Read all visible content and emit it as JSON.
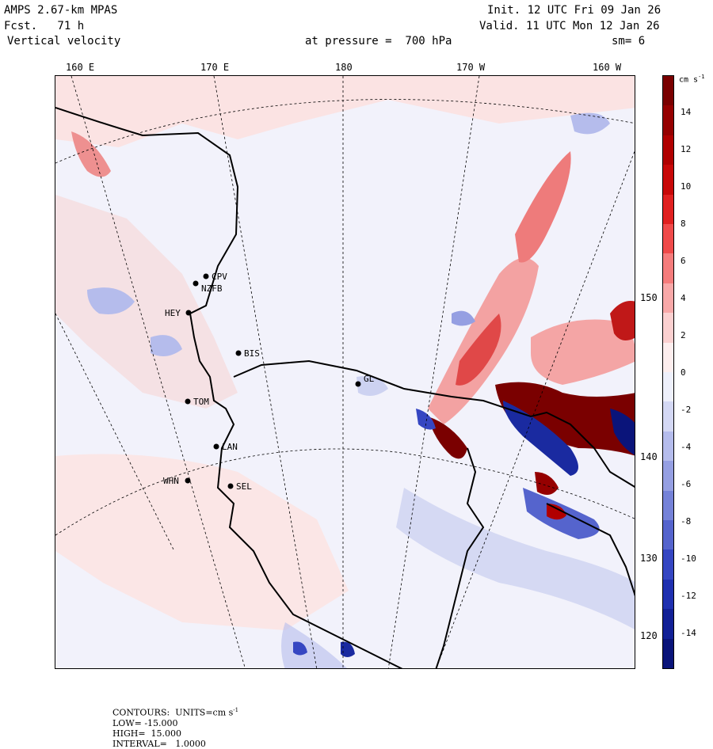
{
  "header": {
    "model": "AMPS 2.67-km MPAS",
    "fcst": "Fcst.   71 h",
    "field": "Vertical velocity",
    "level": "at pressure =  700 hPa",
    "init": "Init. 12 UTC Fri 09 Jan 26",
    "valid": "Valid. 11 UTC Mon 12 Jan 26",
    "smooth": "sm= 6"
  },
  "lon_labels": [
    "160 E",
    "170 E",
    "180",
    "170 W",
    "160 W"
  ],
  "lat_labels": [
    "150 W",
    "140 W",
    "130 W",
    "120 W"
  ],
  "stations": [
    "CPV",
    "NZFB",
    "HEY",
    "BIS",
    "TOM",
    "LAN",
    "WHN",
    "SEL",
    "GL"
  ],
  "colorbar": {
    "units": "cm s",
    "units_exp": "-1",
    "labels": [
      "14",
      "12",
      "10",
      "8",
      "6",
      "4",
      "2",
      "0",
      "-2",
      "-4",
      "-6",
      "-8",
      "-10",
      "-12",
      "-14"
    ],
    "colors": [
      "#7a0000",
      "#950000",
      "#b00000",
      "#c80808",
      "#e02020",
      "#ef4a4a",
      "#f57c7c",
      "#f8a8a8",
      "#fbd0d0",
      "#fdeeee",
      "#eef0fb",
      "#d4d8f4",
      "#b5bcec",
      "#959fe2",
      "#7582d8",
      "#5564cd",
      "#3546c2",
      "#1f30b0",
      "#122096",
      "#0a147a"
    ]
  },
  "footer": {
    "contours": "CONTOURS:  UNITS=cm s",
    "units_exp": "-1",
    "low": "LOW= -15.000",
    "high": "HIGH=  15.000",
    "interval": "INTERVAL=   1.0000"
  }
}
